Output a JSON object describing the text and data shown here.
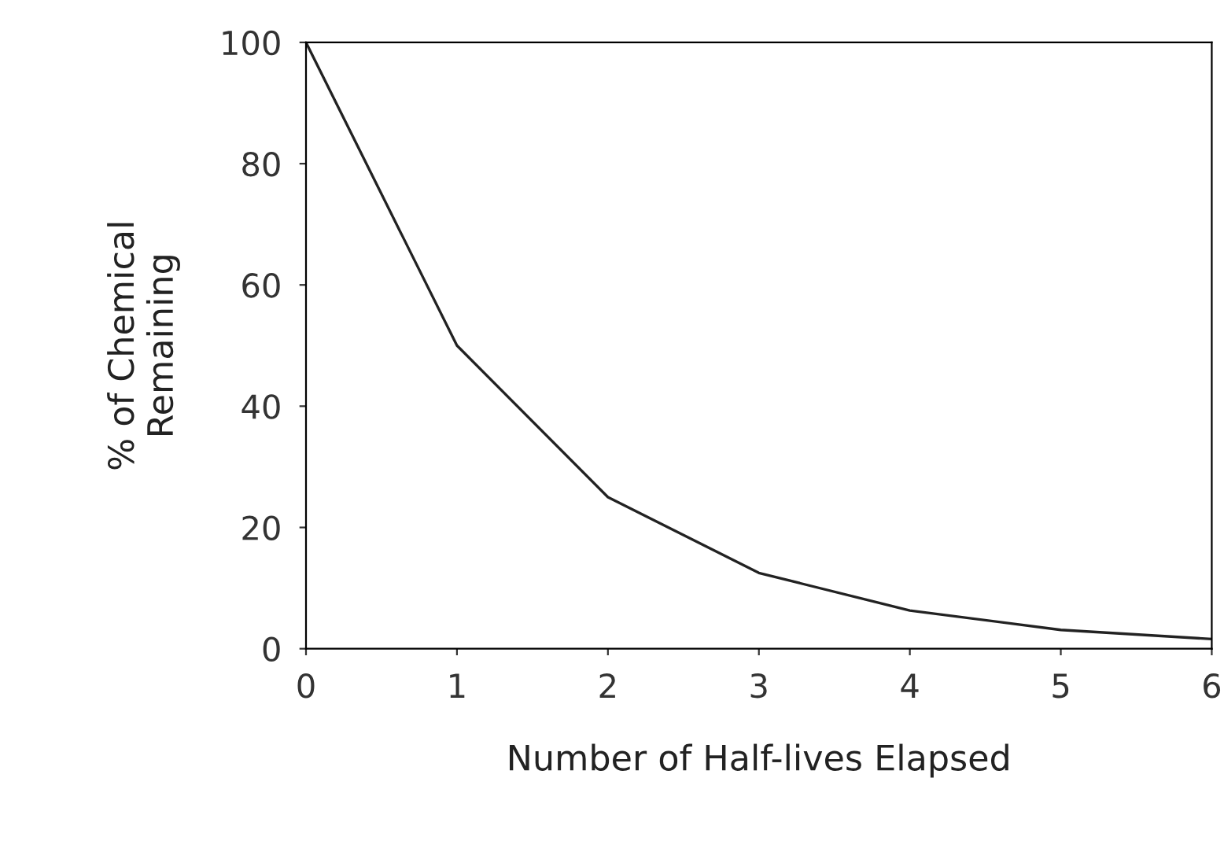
{
  "chart_data": {
    "type": "line",
    "xlabel": "Number of Half-lives Elapsed",
    "ylabel": "% of Chemical\nRemaining",
    "x": [
      0,
      1,
      2,
      3,
      4,
      5,
      6
    ],
    "series": [
      {
        "color": "#222222",
        "values": [
          100,
          50,
          25,
          12.5,
          6.3,
          3.1,
          1.6
        ]
      }
    ],
    "xlim": [
      0,
      6
    ],
    "ylim": [
      0,
      100
    ],
    "xticks": [
      0,
      1,
      2,
      3,
      4,
      5,
      6
    ],
    "yticks": [
      0,
      20,
      40,
      60,
      80,
      100
    ],
    "grid": false,
    "legend": false,
    "marker": "none",
    "line_style": "solid"
  }
}
